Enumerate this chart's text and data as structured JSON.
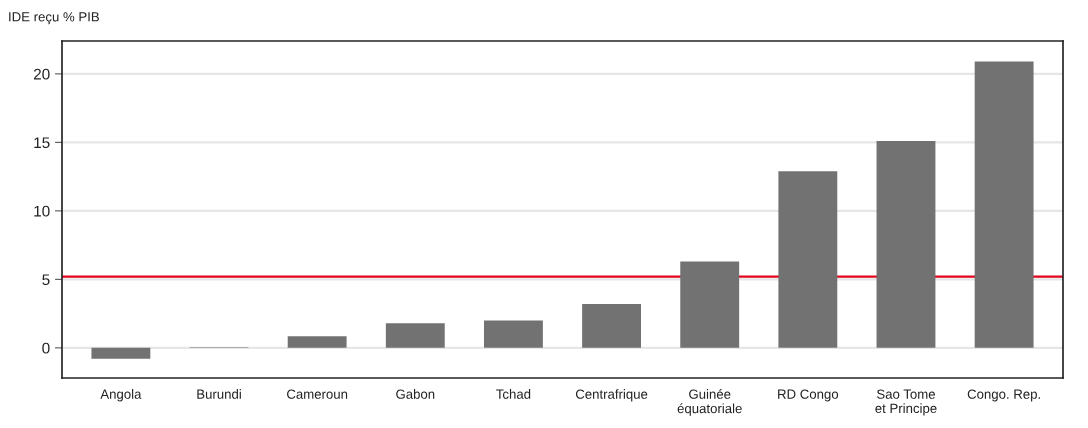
{
  "chart_data": {
    "type": "bar",
    "ylabel": "IDE reçu % PIB",
    "categories": [
      "Angola",
      "Burundi",
      "Cameroun",
      "Gabon",
      "Tchad",
      "Centrafrique",
      "Guinée\néquatoriale",
      "RD Congo",
      "Sao Tome\net Principe",
      "Congo. Rep."
    ],
    "values": [
      -0.8,
      0.05,
      0.85,
      1.8,
      2.0,
      3.2,
      6.3,
      12.9,
      15.1,
      20.9
    ],
    "color": "#727272",
    "ylim": [
      -2.2,
      22.4
    ],
    "yticks": [
      0,
      5,
      10,
      15,
      20
    ],
    "grid": "y",
    "ref_lines": [
      {
        "axis": "y",
        "value": 5.2,
        "color": "#e3001b"
      }
    ]
  }
}
